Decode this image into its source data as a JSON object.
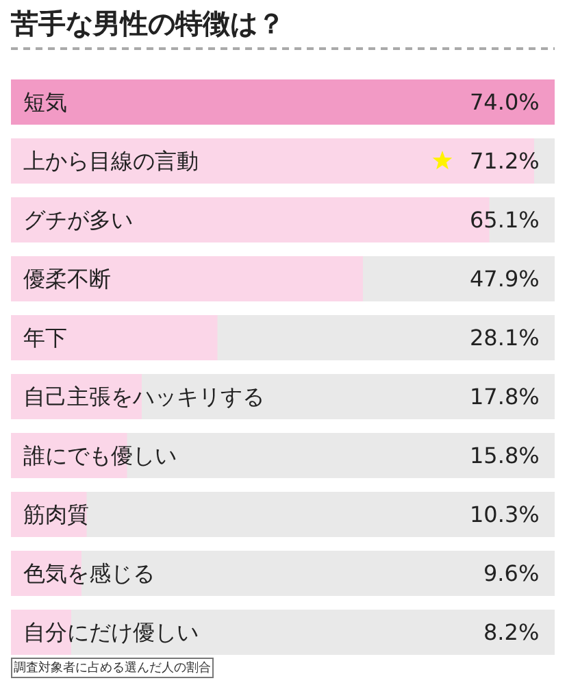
{
  "chart_data": {
    "type": "bar",
    "orientation": "horizontal",
    "title": "苦手な男性の特徴は？",
    "categories": [
      "短気",
      "上から目線の言動",
      "グチが多い",
      "優柔不断",
      "年下",
      "自己主張をハッキリする",
      "誰にでも優しい",
      "筋肉質",
      "色気を感じる",
      "自分にだけ優しい"
    ],
    "values": [
      74.0,
      71.2,
      65.1,
      47.9,
      28.1,
      17.8,
      15.8,
      10.3,
      9.6,
      8.2
    ],
    "value_labels": [
      "74.0%",
      "71.2%",
      "65.1%",
      "47.9%",
      "28.1%",
      "17.8%",
      "15.8%",
      "10.3%",
      "9.6%",
      "8.2%"
    ],
    "colors": [
      "#f29ac5",
      "#fbd6e8",
      "#fbd6e8",
      "#fbd6e8",
      "#fbd6e8",
      "#fbd6e8",
      "#fbd6e8",
      "#fbd6e8",
      "#fbd6e8",
      "#fbd6e8"
    ],
    "xlim": [
      0,
      74
    ],
    "tick_labels": "y",
    "annotations": [
      "調査対象者に占める選んだ人の割合"
    ]
  }
}
